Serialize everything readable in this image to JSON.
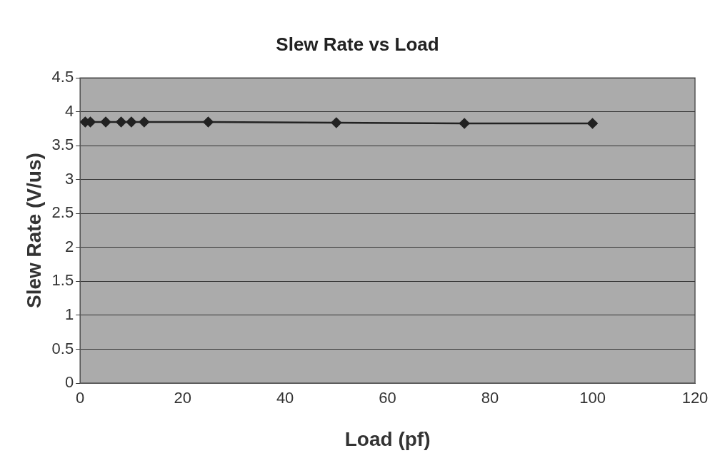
{
  "chart_data": {
    "type": "line",
    "title": "Slew Rate vs Load",
    "xlabel": "Load (pf)",
    "ylabel": "Slew Rate (V/us)",
    "x": [
      1,
      2,
      5,
      8,
      10,
      12.5,
      25,
      50,
      75,
      100
    ],
    "series": [
      {
        "color": "#222222",
        "values": [
          3.85,
          3.85,
          3.85,
          3.85,
          3.85,
          3.85,
          3.85,
          3.84,
          3.83,
          3.83
        ]
      }
    ],
    "xlim": [
      0,
      120
    ],
    "xticks": [
      0,
      20,
      40,
      60,
      80,
      100,
      120
    ],
    "ylim": [
      0,
      4.5
    ],
    "yticks": [
      0,
      0.5,
      1,
      1.5,
      2,
      2.5,
      3,
      3.5,
      4,
      4.5
    ],
    "grid": "y",
    "legend": false,
    "marker": "diamond",
    "line_style": "solid"
  }
}
